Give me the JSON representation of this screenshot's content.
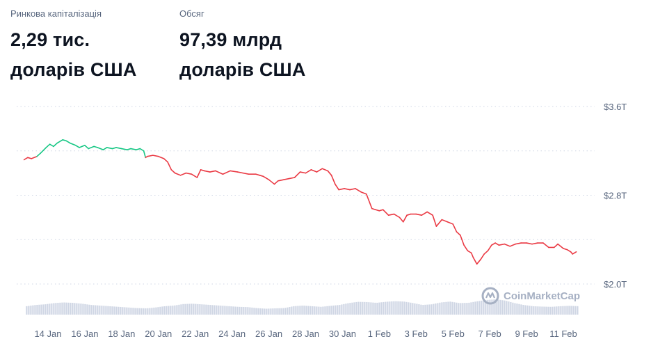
{
  "stats": {
    "market_cap": {
      "label": "Ринкова капіталізація",
      "value_line1": "2,29 тис.",
      "value_line2": "доларів США"
    },
    "volume": {
      "label": "Обсяг",
      "value_line1": "97,39 млрд",
      "value_line2": "доларів США"
    }
  },
  "watermark": {
    "text": "CoinMarketCap",
    "icon": "coinmarketcap-logo-icon"
  },
  "colors": {
    "up": "#16c784",
    "down": "#ea3943",
    "grid": "#cfd6e4",
    "volume": "#cfd6e4"
  },
  "chart_data": {
    "type": "line",
    "title": "",
    "xlabel": "",
    "ylabel": "",
    "grid": true,
    "ylim": [
      1.6,
      3.7
    ],
    "y_ticks": [
      {
        "value": 3.6,
        "label": "$3.6T"
      },
      {
        "value": 2.8,
        "label": "$2.8T"
      },
      {
        "value": 2.0,
        "label": "$2.0T"
      }
    ],
    "x_ticks": [
      {
        "x": 1.5,
        "label": "14 Jan"
      },
      {
        "x": 3.5,
        "label": "16 Jan"
      },
      {
        "x": 5.5,
        "label": "18 Jan"
      },
      {
        "x": 7.5,
        "label": "20 Jan"
      },
      {
        "x": 9.5,
        "label": "22 Jan"
      },
      {
        "x": 11.5,
        "label": "24 Jan"
      },
      {
        "x": 13.5,
        "label": "26 Jan"
      },
      {
        "x": 15.5,
        "label": "28 Jan"
      },
      {
        "x": 17.5,
        "label": "30 Jan"
      },
      {
        "x": 19.5,
        "label": "1 Feb"
      },
      {
        "x": 21.5,
        "label": "3 Feb"
      },
      {
        "x": 23.5,
        "label": "5 Feb"
      },
      {
        "x": 25.5,
        "label": "7 Feb"
      },
      {
        "x": 27.5,
        "label": "9 Feb"
      },
      {
        "x": 29.5,
        "label": "11 Feb"
      }
    ],
    "x_range": [
      -0.2,
      31.2
    ],
    "reference_value": 3.16,
    "series": [
      {
        "x": [
          0.2,
          0.4,
          0.6,
          0.9,
          1.1,
          1.4,
          1.6,
          1.8,
          2.0,
          2.3,
          2.5,
          2.7,
          3.0,
          3.2,
          3.5,
          3.7,
          4.0,
          4.2,
          4.5,
          4.7,
          5.0,
          5.2,
          5.5,
          5.8,
          6.0,
          6.3,
          6.5,
          6.7,
          6.8,
          6.9,
          7.2,
          7.5,
          7.8,
          8.0,
          8.2,
          8.4,
          8.7,
          9.0,
          9.3,
          9.6,
          9.8,
          10.0,
          10.3,
          10.6,
          11.0,
          11.4,
          11.8,
          12.1,
          12.4,
          12.8,
          13.0,
          13.2,
          13.5,
          13.8,
          14.0,
          14.3,
          14.6,
          14.9,
          15.2,
          15.5,
          15.8,
          16.1,
          16.4,
          16.7,
          16.9,
          17.0,
          17.1,
          17.3,
          17.6,
          17.9,
          18.2,
          18.5,
          18.8,
          19.1,
          19.3,
          19.5,
          19.7,
          20.0,
          20.3,
          20.6,
          20.8,
          21.0,
          21.2,
          21.5,
          21.8,
          22.1,
          22.3,
          22.4,
          22.6,
          22.9,
          23.2,
          23.5,
          23.7,
          23.9,
          24.1,
          24.3,
          24.5,
          24.6,
          24.8,
          25.0,
          25.2,
          25.4,
          25.6,
          25.8,
          26.0,
          26.3,
          26.6,
          26.9,
          27.2,
          27.5,
          27.8,
          28.1,
          28.4,
          28.7,
          29.0,
          29.2,
          29.5,
          29.7,
          29.9,
          30.0,
          30.2
        ],
        "values": [
          3.12,
          3.14,
          3.13,
          3.15,
          3.18,
          3.23,
          3.26,
          3.24,
          3.27,
          3.3,
          3.29,
          3.27,
          3.25,
          3.23,
          3.25,
          3.22,
          3.24,
          3.23,
          3.21,
          3.23,
          3.22,
          3.23,
          3.22,
          3.21,
          3.22,
          3.21,
          3.22,
          3.2,
          3.14,
          3.15,
          3.16,
          3.15,
          3.13,
          3.1,
          3.03,
          3.0,
          2.98,
          3.0,
          2.99,
          2.96,
          3.03,
          3.02,
          3.01,
          3.02,
          2.99,
          3.02,
          3.01,
          3.0,
          2.99,
          2.99,
          2.98,
          2.97,
          2.94,
          2.9,
          2.93,
          2.94,
          2.95,
          2.96,
          3.01,
          3.0,
          3.03,
          3.01,
          3.04,
          3.02,
          2.98,
          2.94,
          2.9,
          2.85,
          2.86,
          2.85,
          2.86,
          2.83,
          2.81,
          2.68,
          2.67,
          2.66,
          2.67,
          2.62,
          2.63,
          2.6,
          2.56,
          2.62,
          2.63,
          2.63,
          2.62,
          2.65,
          2.63,
          2.62,
          2.52,
          2.58,
          2.56,
          2.54,
          2.47,
          2.44,
          2.35,
          2.3,
          2.28,
          2.24,
          2.18,
          2.22,
          2.27,
          2.3,
          2.35,
          2.37,
          2.35,
          2.36,
          2.34,
          2.36,
          2.37,
          2.37,
          2.36,
          2.37,
          2.37,
          2.33,
          2.33,
          2.36,
          2.32,
          2.31,
          2.29,
          2.27,
          2.29
        ]
      }
    ],
    "volume": {
      "x": [
        0,
        0.5,
        1,
        1.5,
        2,
        2.5,
        3,
        3.5,
        4,
        4.5,
        5,
        5.5,
        6,
        6.5,
        7,
        7.5,
        8,
        8.5,
        9,
        9.5,
        10,
        10.5,
        11,
        11.5,
        12,
        12.5,
        13,
        13.5,
        14,
        14.5,
        15,
        15.5,
        16,
        16.5,
        17,
        17.5,
        18,
        18.5,
        19,
        19.5,
        20,
        20.5,
        21,
        21.5,
        22,
        22.5,
        23,
        23.5,
        24,
        24.5,
        25,
        25.5,
        26,
        26.5,
        27,
        27.5,
        28,
        28.5,
        29,
        29.5,
        30
      ],
      "values": [
        0.45,
        0.55,
        0.6,
        0.7,
        0.75,
        0.72,
        0.65,
        0.55,
        0.5,
        0.45,
        0.4,
        0.35,
        0.3,
        0.28,
        0.35,
        0.45,
        0.5,
        0.62,
        0.65,
        0.6,
        0.55,
        0.5,
        0.45,
        0.4,
        0.38,
        0.3,
        0.25,
        0.28,
        0.3,
        0.45,
        0.5,
        0.45,
        0.4,
        0.48,
        0.55,
        0.7,
        0.8,
        0.78,
        0.72,
        0.8,
        0.85,
        0.82,
        0.7,
        0.55,
        0.6,
        0.75,
        0.82,
        0.7,
        0.72,
        0.85,
        0.95,
        1.0,
        0.9,
        0.7,
        0.55,
        0.45,
        0.42,
        0.4,
        0.45,
        0.48,
        0.45
      ]
    }
  }
}
